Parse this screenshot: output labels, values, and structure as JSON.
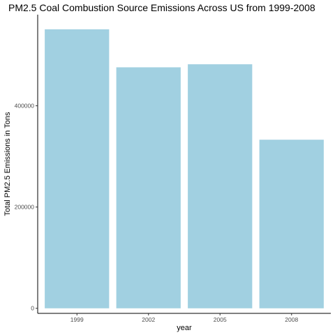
{
  "chart_data": {
    "type": "bar",
    "title": "PM2.5 Coal Combustion Source Emissions Across US from 1999-2008",
    "xlabel": "year",
    "ylabel": "Total PM2.5 Emissions in Tons",
    "categories": [
      "1999",
      "2002",
      "2005",
      "2008"
    ],
    "values": [
      551000,
      476000,
      482000,
      333000
    ],
    "yticks": [
      0,
      200000,
      400000
    ],
    "ytick_labels": [
      "0",
      "200000",
      "400000"
    ],
    "ylim": [
      -10000,
      580000
    ],
    "bar_color": "#a1d0e1",
    "grid": false,
    "legend": "none"
  }
}
